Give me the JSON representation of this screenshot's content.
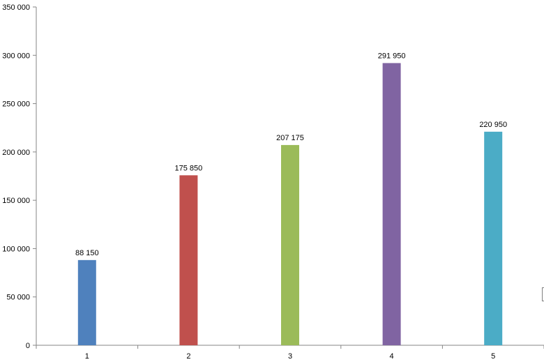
{
  "chart_data": {
    "type": "bar",
    "title": "",
    "xlabel": "",
    "ylabel": "",
    "categories": [
      "1",
      "2",
      "3",
      "4",
      "5"
    ],
    "values": [
      88150,
      175850,
      207175,
      291950,
      220950
    ],
    "data_labels": [
      "88 150",
      "175 850",
      "207 175",
      "291 950",
      "220 950"
    ],
    "colors": [
      "#4F81BD",
      "#C0504D",
      "#9BBB59",
      "#8064A2",
      "#4BACC6"
    ],
    "ylim": [
      0,
      350000
    ],
    "yticks": [
      0,
      50000,
      100000,
      150000,
      200000,
      250000,
      300000,
      350000
    ],
    "ytick_labels": [
      "0",
      "50 000",
      "100 000",
      "150 000",
      "200 000",
      "250 000",
      "300 000",
      "350 000"
    ],
    "grid": false,
    "legend": "none"
  }
}
